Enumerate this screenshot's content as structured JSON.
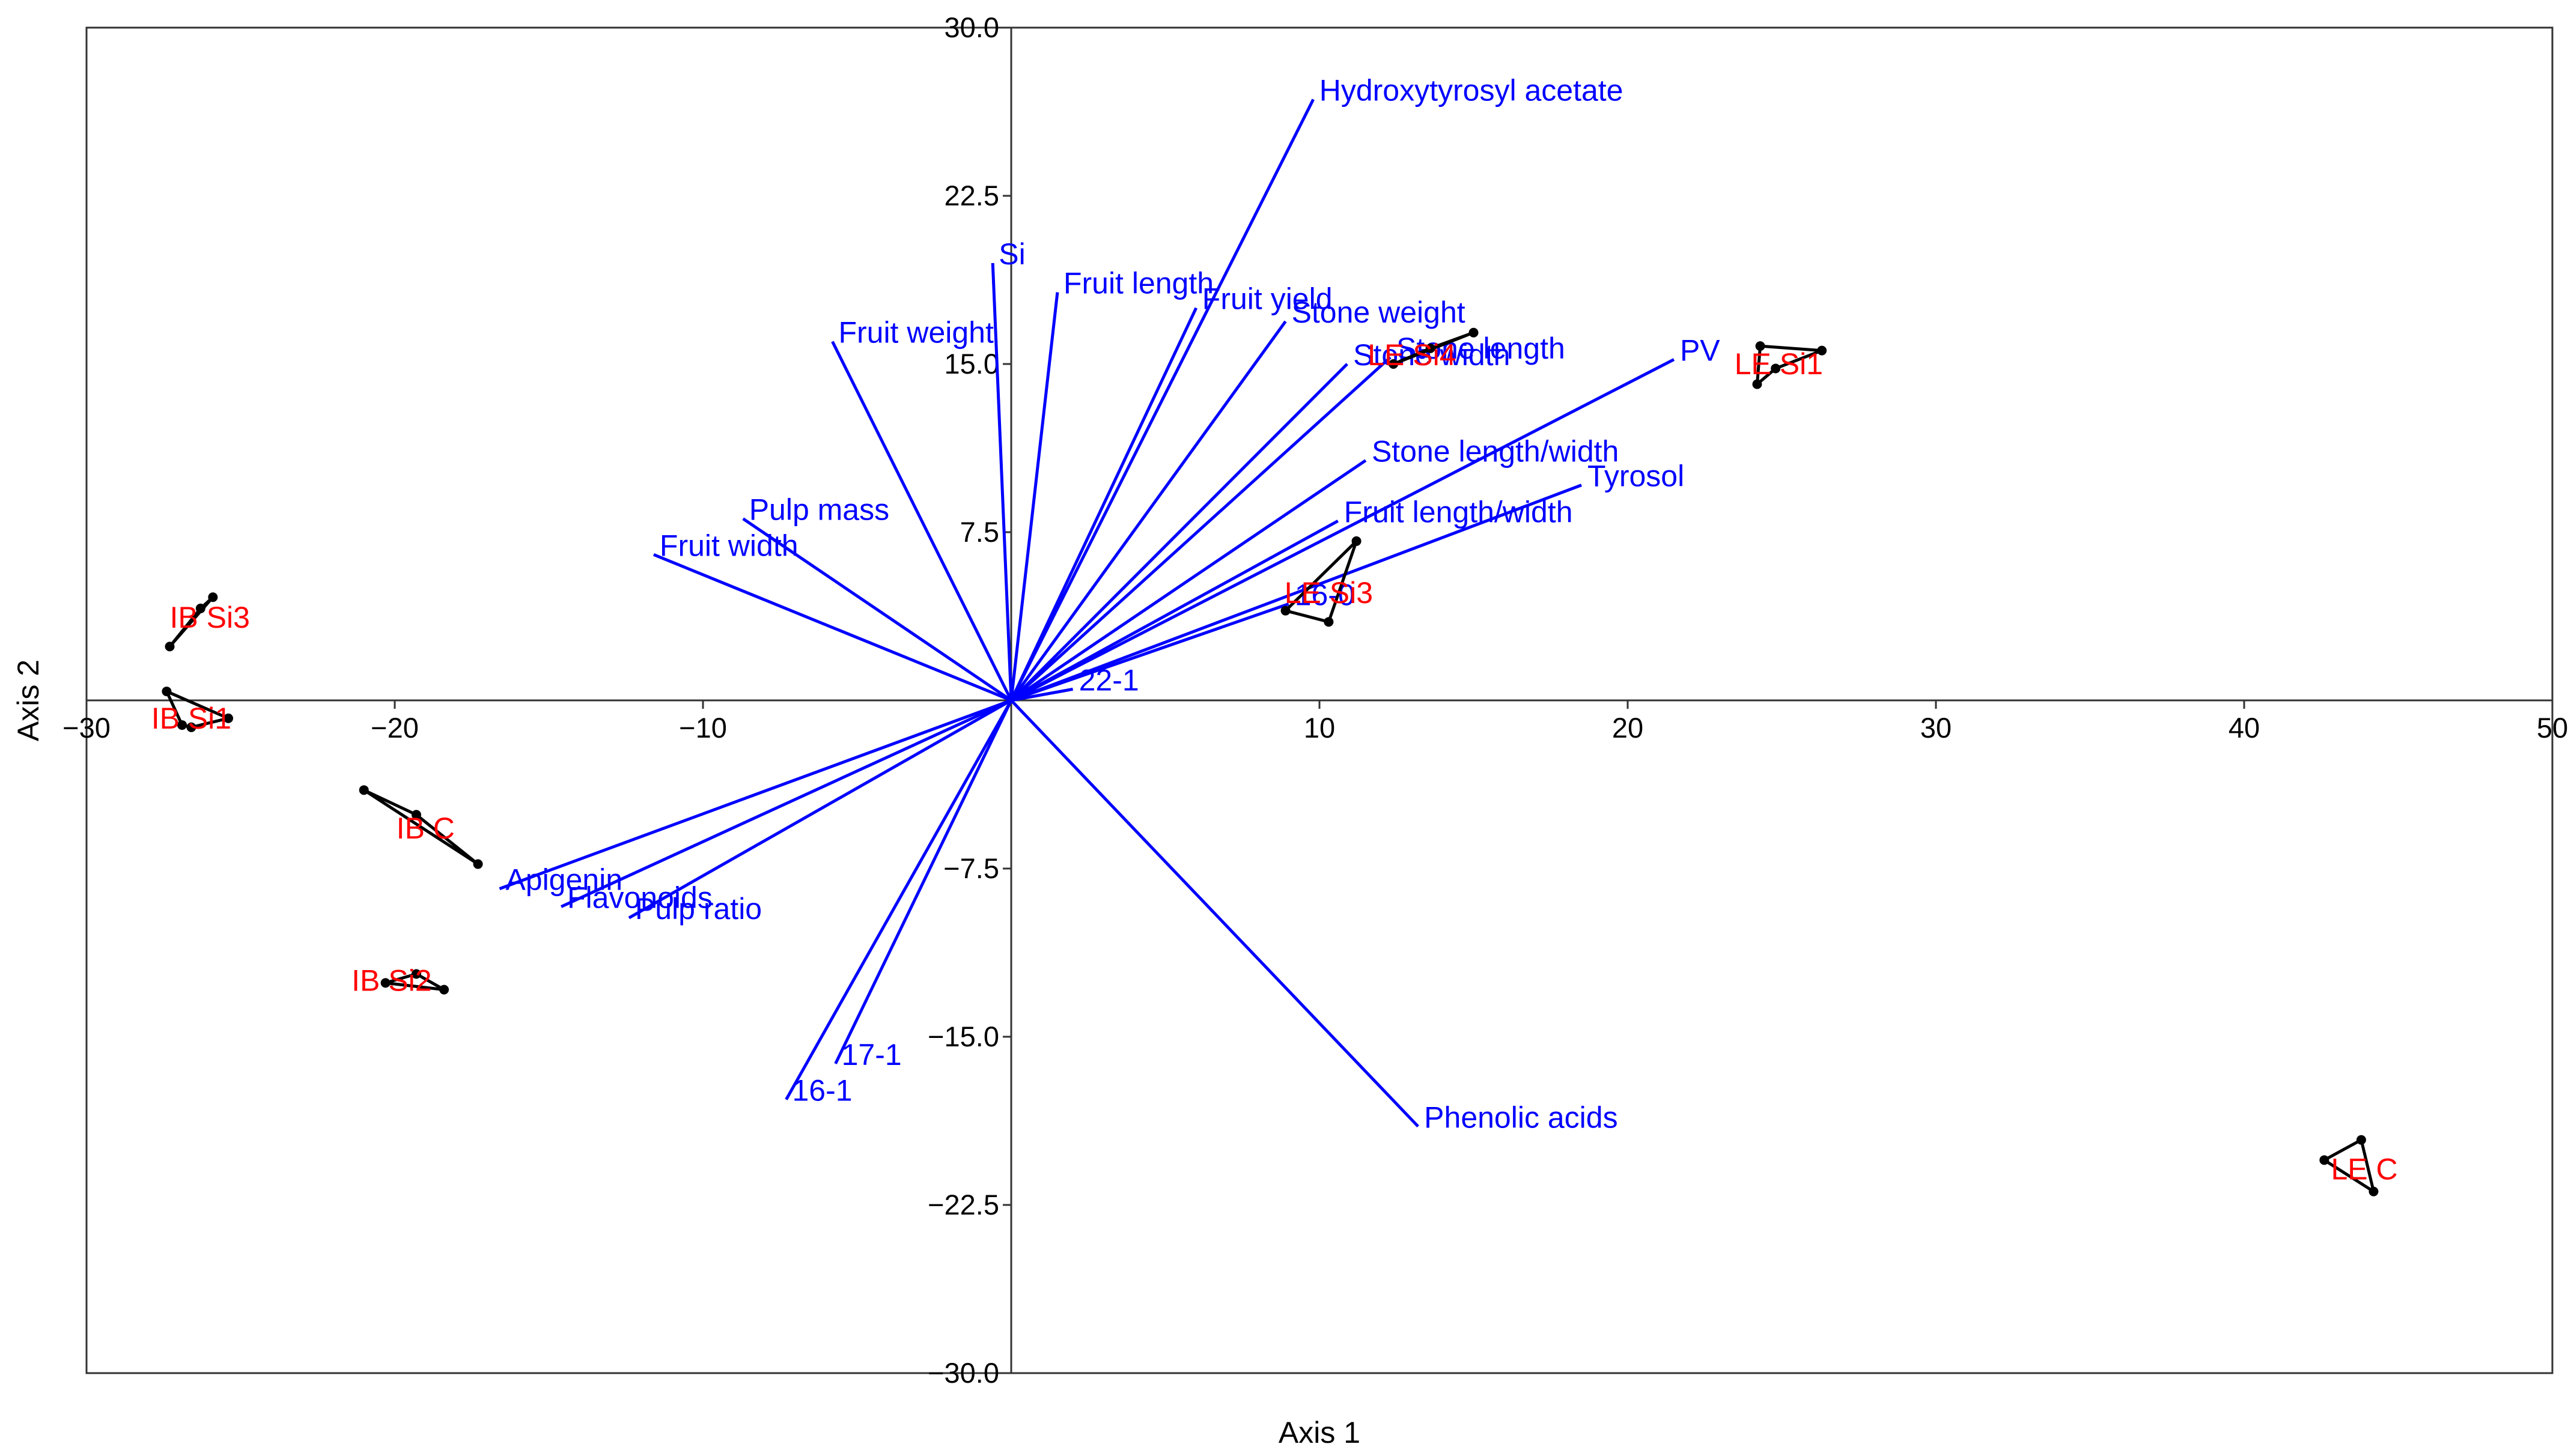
{
  "chart_data": {
    "type": "scatter",
    "subtype": "biplot",
    "title": "",
    "xlabel": "Axis 1",
    "ylabel": "Axis 2",
    "xlim": [
      -30,
      50
    ],
    "ylim": [
      -30,
      30
    ],
    "xticks": [
      -30,
      -20,
      -10,
      10,
      20,
      30,
      40,
      50
    ],
    "xtick_labels": [
      "−30",
      "−20",
      "−10",
      "10",
      "20",
      "30",
      "40",
      "50"
    ],
    "yticks": [
      30,
      22.5,
      15,
      7.5,
      -7.5,
      -15,
      -22.5,
      -30
    ],
    "ytick_labels": [
      "30.0",
      "22.5",
      "15.0",
      "7.5",
      "−7.5",
      "−15.0",
      "−22.5",
      "−30.0"
    ],
    "vector_color": "#0000ff",
    "group_label_color": "#ff0000",
    "vectors": [
      {
        "name": "Hydroxytyrosyl acetate",
        "x": 9.8,
        "y": 26.8
      },
      {
        "name": "Si",
        "x": -0.6,
        "y": 19.5
      },
      {
        "name": "Fruit length",
        "x": 1.5,
        "y": 18.2
      },
      {
        "name": "Fruit yield",
        "x": 6.0,
        "y": 17.5
      },
      {
        "name": "Stone weight",
        "x": 8.9,
        "y": 16.9
      },
      {
        "name": "Fruit weight",
        "x": -5.8,
        "y": 16.0
      },
      {
        "name": "Stone width",
        "x": 10.9,
        "y": 15.0
      },
      {
        "name": "Stone length",
        "x": 12.3,
        "y": 15.3
      },
      {
        "name": "PV",
        "x": 21.5,
        "y": 15.2
      },
      {
        "name": "Stone length/width",
        "x": 11.5,
        "y": 10.7
      },
      {
        "name": "Tyrosol",
        "x": 18.5,
        "y": 9.6
      },
      {
        "name": "Pulp mass",
        "x": -8.7,
        "y": 8.1
      },
      {
        "name": "Fruit length/width",
        "x": 10.6,
        "y": 8.0
      },
      {
        "name": "Fruit width",
        "x": -11.6,
        "y": 6.5
      },
      {
        "name": "16-0",
        "x": 9.0,
        "y": 4.3
      },
      {
        "name": "22-1",
        "x": 2.0,
        "y": 0.5
      },
      {
        "name": "Apigenin",
        "x": -16.6,
        "y": -8.4
      },
      {
        "name": "Flavonoids",
        "x": -14.6,
        "y": -9.2
      },
      {
        "name": "Pulp ratio",
        "x": -12.4,
        "y": -9.7
      },
      {
        "name": "17-1",
        "x": -5.7,
        "y": -16.2
      },
      {
        "name": "16-1",
        "x": -7.3,
        "y": -17.8
      },
      {
        "name": "Phenolic acids",
        "x": 13.2,
        "y": -19.0
      }
    ],
    "groups": [
      {
        "name": "IB Si3",
        "label_x": -26.0,
        "label_y": 3.7,
        "points": [
          [
            -27.3,
            2.4
          ],
          [
            -25.9,
            4.6
          ],
          [
            -26.3,
            4.1
          ]
        ]
      },
      {
        "name": "IB Si1",
        "label_x": -26.6,
        "label_y": -0.8,
        "points": [
          [
            -27.4,
            0.4
          ],
          [
            -26.9,
            -1.1
          ],
          [
            -26.6,
            -1.2
          ],
          [
            -25.4,
            -0.8
          ]
        ]
      },
      {
        "name": "IB C",
        "label_x": -19.0,
        "label_y": -5.7,
        "points": [
          [
            -21.0,
            -4.0
          ],
          [
            -19.3,
            -5.1
          ],
          [
            -17.3,
            -7.3
          ]
        ]
      },
      {
        "name": "IB Si2",
        "label_x": -20.1,
        "label_y": -12.5,
        "points": [
          [
            -20.3,
            -12.6
          ],
          [
            -19.3,
            -12.2
          ],
          [
            -18.4,
            -12.9
          ]
        ]
      },
      {
        "name": "LE Si3",
        "label_x": 10.3,
        "label_y": 4.8,
        "points": [
          [
            8.9,
            4.0
          ],
          [
            11.2,
            7.1
          ],
          [
            10.3,
            3.5
          ]
        ]
      },
      {
        "name": "LE Si4",
        "label_x": 13.0,
        "label_y": 15.4,
        "points": [
          [
            12.4,
            15.0
          ],
          [
            13.6,
            15.7
          ],
          [
            15.0,
            16.4
          ]
        ]
      },
      {
        "name": "LE Si1",
        "label_x": 24.9,
        "label_y": 15.0,
        "points": [
          [
            24.3,
            15.8
          ],
          [
            26.3,
            15.6
          ],
          [
            24.8,
            14.8
          ],
          [
            24.2,
            14.1
          ]
        ]
      },
      {
        "name": "LE C",
        "label_x": 43.9,
        "label_y": -20.9,
        "points": [
          [
            42.6,
            -20.5
          ],
          [
            43.8,
            -19.6
          ],
          [
            44.2,
            -21.9
          ]
        ]
      }
    ]
  }
}
